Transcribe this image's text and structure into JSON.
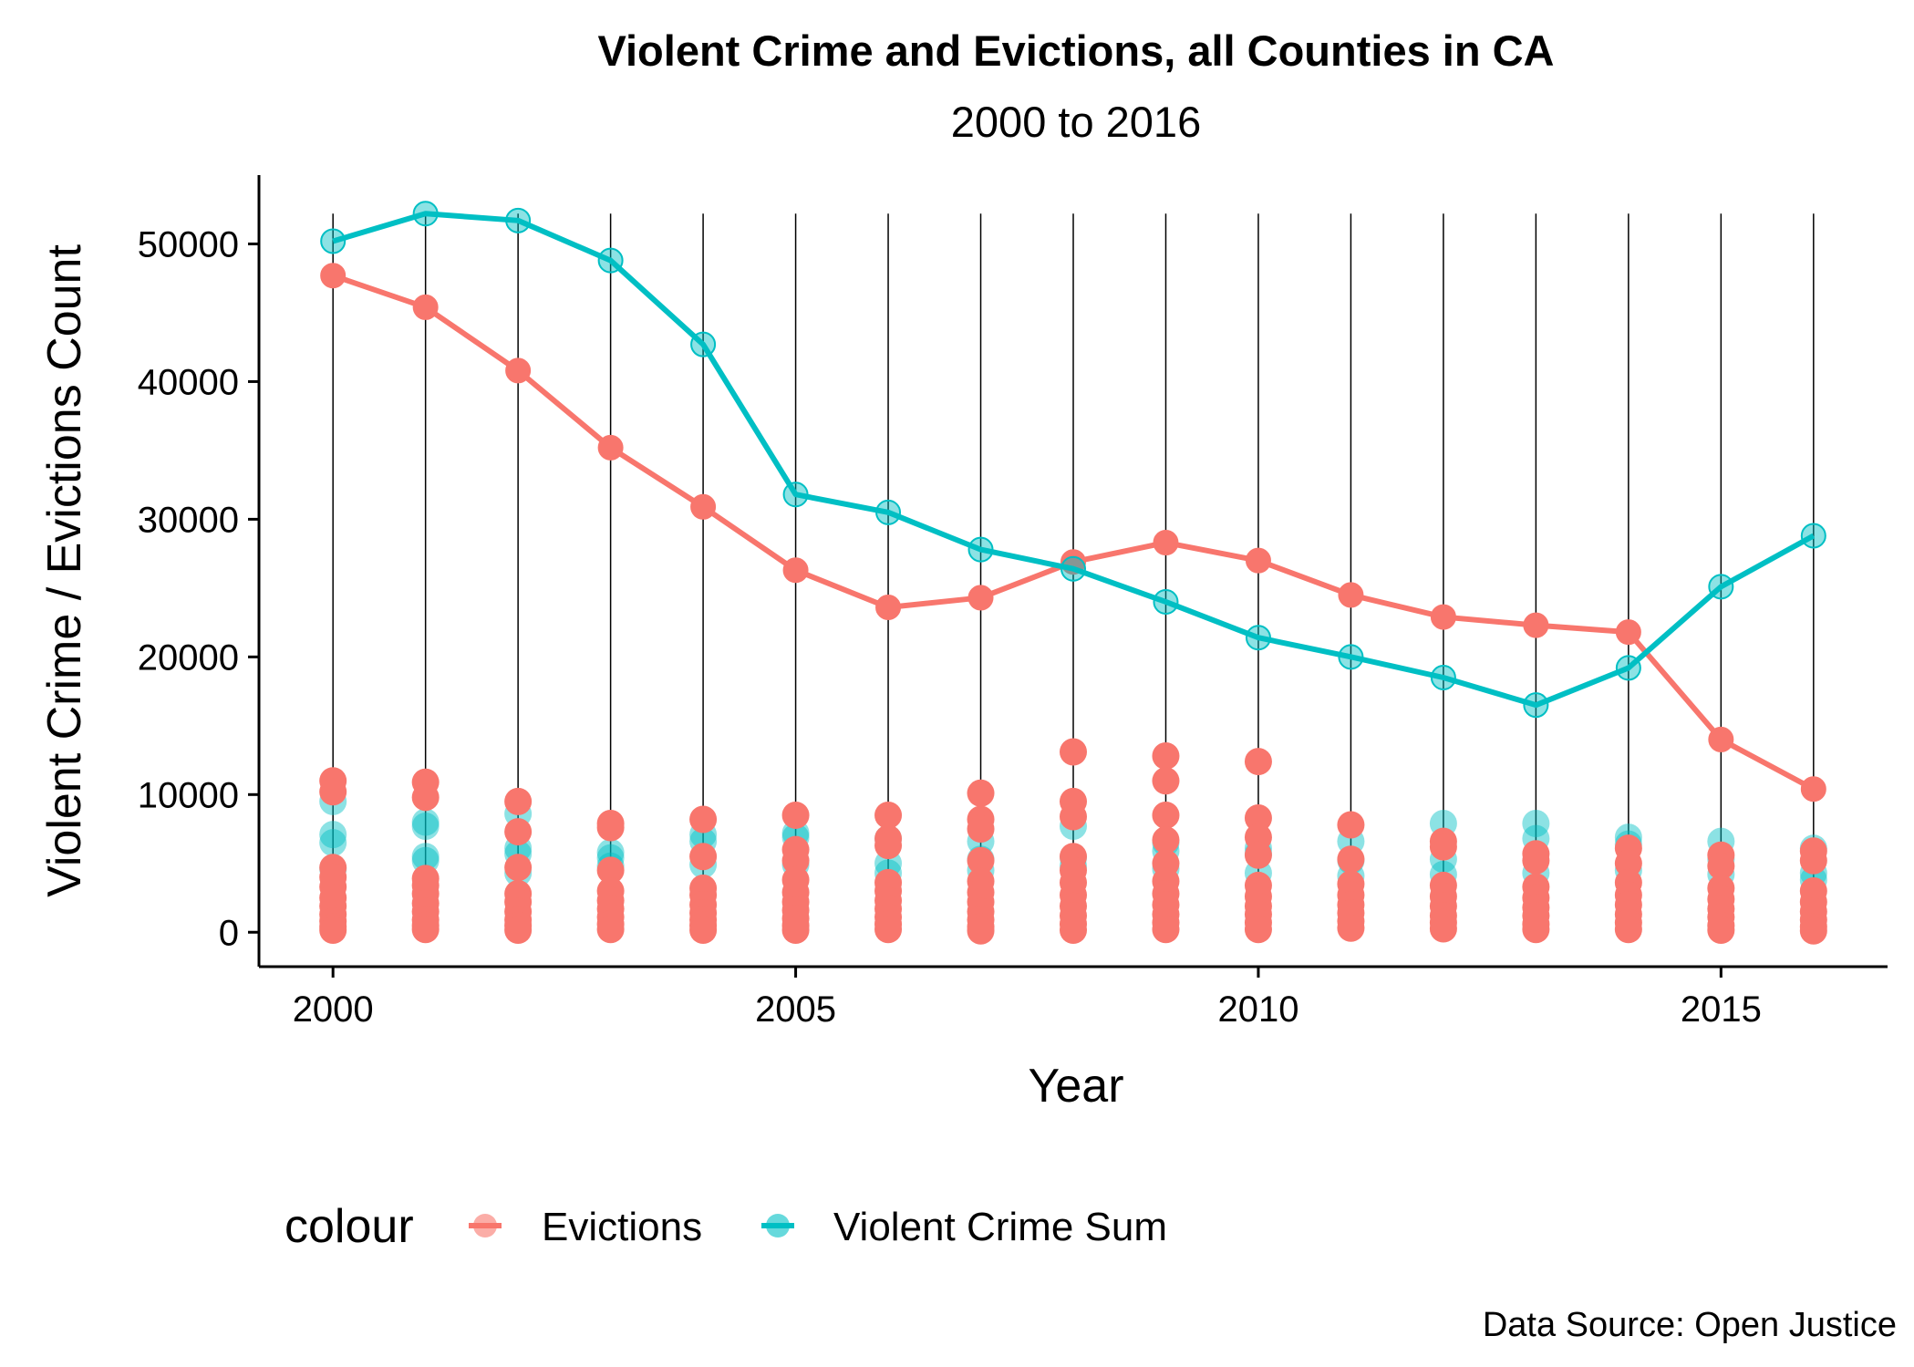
{
  "chart_data": {
    "type": "line",
    "title": "Violent Crime and Evictions, all Counties in CA",
    "subtitle": "2000 to 2016",
    "xlabel": "Year",
    "ylabel": "Violent Crime / Evictions Count",
    "caption": "Data Source: Open Justice",
    "xlim": [
      1999.2,
      2016.8
    ],
    "ylim": [
      -2500,
      55000
    ],
    "xticks": [
      2000,
      2005,
      2010,
      2015
    ],
    "yticks": [
      0,
      10000,
      20000,
      30000,
      40000,
      50000
    ],
    "x": [
      2000,
      2001,
      2002,
      2003,
      2004,
      2005,
      2006,
      2007,
      2008,
      2009,
      2010,
      2011,
      2012,
      2013,
      2014,
      2015,
      2016
    ],
    "grid": false,
    "vertical_segments": {
      "x": [
        2000,
        2001,
        2002,
        2003,
        2004,
        2005,
        2006,
        2007,
        2008,
        2009,
        2010,
        2011,
        2012,
        2013,
        2014,
        2015,
        2016
      ],
      "y_from": 2000,
      "y_to": 52200
    },
    "legend": {
      "title": "colour",
      "position": "bottom"
    },
    "series": [
      {
        "name": "Evictions",
        "color": "#F8766D",
        "values": [
          47700,
          45400,
          40800,
          35200,
          30900,
          26300,
          23600,
          24300,
          26900,
          28300,
          27000,
          24500,
          22900,
          22300,
          21800,
          14000,
          10400
        ]
      },
      {
        "name": "Violent Crime Sum",
        "color": "#00BFC4",
        "values": [
          50200,
          52200,
          51700,
          48800,
          42700,
          31800,
          30500,
          27800,
          26400,
          24000,
          21400,
          20000,
          18500,
          16500,
          19200,
          25100,
          28800
        ]
      }
    ],
    "county_points": [
      {
        "series": "Evictions",
        "x": 2000,
        "values": [
          11000,
          10200,
          4700,
          4000,
          3300,
          2500,
          1900,
          1300,
          800,
          400,
          150
        ]
      },
      {
        "series": "Evictions",
        "x": 2001,
        "values": [
          10900,
          9800,
          3900,
          3400,
          2800,
          2100,
          1500,
          900,
          500,
          200
        ]
      },
      {
        "series": "Evictions",
        "x": 2002,
        "values": [
          9500,
          7300,
          4700,
          2800,
          2200,
          1500,
          900,
          500,
          150
        ]
      },
      {
        "series": "Evictions",
        "x": 2003,
        "values": [
          7900,
          7600,
          4500,
          3000,
          2300,
          1700,
          1100,
          600,
          200
        ]
      },
      {
        "series": "Evictions",
        "x": 2004,
        "values": [
          8200,
          5500,
          3200,
          2700,
          2000,
          1400,
          900,
          500,
          150
        ]
      },
      {
        "series": "Evictions",
        "x": 2005,
        "values": [
          8500,
          6000,
          5200,
          3800,
          2900,
          2200,
          1600,
          1000,
          500,
          150
        ]
      },
      {
        "series": "Evictions",
        "x": 2006,
        "values": [
          8500,
          6800,
          6300,
          3600,
          3000,
          2300,
          1700,
          1100,
          600,
          200
        ]
      },
      {
        "series": "Evictions",
        "x": 2007,
        "values": [
          10100,
          8200,
          7500,
          5200,
          3700,
          2900,
          2200,
          1500,
          900,
          400,
          100
        ]
      },
      {
        "series": "Evictions",
        "x": 2008,
        "values": [
          13100,
          9500,
          8400,
          5500,
          4500,
          3600,
          2700,
          1900,
          1200,
          600,
          150
        ]
      },
      {
        "series": "Evictions",
        "x": 2009,
        "values": [
          12800,
          11000,
          8500,
          6700,
          5000,
          3700,
          2800,
          2000,
          1300,
          700,
          200
        ]
      },
      {
        "series": "Evictions",
        "x": 2010,
        "values": [
          12400,
          8300,
          6900,
          5600,
          3400,
          2600,
          1900,
          1300,
          700,
          200
        ]
      },
      {
        "series": "Evictions",
        "x": 2011,
        "values": [
          7800,
          5300,
          3500,
          2700,
          2000,
          1400,
          800,
          300
        ]
      },
      {
        "series": "Evictions",
        "x": 2012,
        "values": [
          6600,
          6200,
          3400,
          2600,
          1900,
          1200,
          700,
          250
        ]
      },
      {
        "series": "Evictions",
        "x": 2013,
        "values": [
          5700,
          5200,
          3300,
          2500,
          1800,
          1200,
          600,
          200
        ]
      },
      {
        "series": "Evictions",
        "x": 2014,
        "values": [
          6100,
          5000,
          3600,
          2700,
          2000,
          1300,
          700,
          200
        ]
      },
      {
        "series": "Evictions",
        "x": 2015,
        "values": [
          5600,
          4800,
          3200,
          2400,
          1700,
          1100,
          500,
          150
        ]
      },
      {
        "series": "Evictions",
        "x": 2016,
        "values": [
          5900,
          5200,
          3000,
          2200,
          1500,
          900,
          400,
          100
        ]
      },
      {
        "series": "Violent Crime Sum",
        "x": 2000,
        "values": [
          9500,
          7100,
          6500,
          4600
        ]
      },
      {
        "series": "Violent Crime Sum",
        "x": 2001,
        "values": [
          8000,
          7700,
          5500,
          5200
        ]
      },
      {
        "series": "Violent Crime Sum",
        "x": 2002,
        "values": [
          8600,
          6100,
          5700,
          4300
        ]
      },
      {
        "series": "Violent Crime Sum",
        "x": 2003,
        "values": [
          5800,
          5400,
          4800
        ]
      },
      {
        "series": "Violent Crime Sum",
        "x": 2004,
        "values": [
          7100,
          6600,
          4900
        ]
      },
      {
        "series": "Violent Crime Sum",
        "x": 2005,
        "values": [
          7200,
          6900,
          4900
        ]
      },
      {
        "series": "Violent Crime Sum",
        "x": 2006,
        "values": [
          6800,
          5000,
          4300
        ]
      },
      {
        "series": "Violent Crime Sum",
        "x": 2007,
        "values": [
          6600,
          5300,
          4500
        ]
      },
      {
        "series": "Violent Crime Sum",
        "x": 2008,
        "values": [
          7700,
          5400,
          4800
        ]
      },
      {
        "series": "Violent Crime Sum",
        "x": 2009,
        "values": [
          6500,
          5900,
          4600
        ]
      },
      {
        "series": "Violent Crime Sum",
        "x": 2010,
        "values": [
          6100,
          5700,
          4300
        ]
      },
      {
        "series": "Violent Crime Sum",
        "x": 2011,
        "values": [
          6600,
          5200,
          4100
        ]
      },
      {
        "series": "Violent Crime Sum",
        "x": 2012,
        "values": [
          7900,
          5300,
          4200
        ]
      },
      {
        "series": "Violent Crime Sum",
        "x": 2013,
        "values": [
          7900,
          6800,
          4300
        ]
      },
      {
        "series": "Violent Crime Sum",
        "x": 2014,
        "values": [
          6900,
          6400,
          4500
        ]
      },
      {
        "series": "Violent Crime Sum",
        "x": 2015,
        "values": [
          6600,
          5300,
          4200
        ]
      },
      {
        "series": "Violent Crime Sum",
        "x": 2016,
        "values": [
          6100,
          4300,
          3800
        ]
      }
    ]
  }
}
